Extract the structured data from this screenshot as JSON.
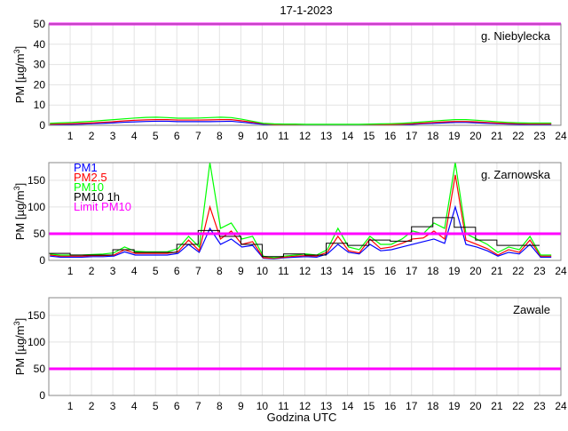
{
  "title": "17-1-2023",
  "xlabel": "Godzina UTC",
  "chart_data": [
    {
      "type": "line",
      "station": "g. Niebylecka",
      "ylabel": "PM [µg/m3]",
      "ylabel_main": "PM [µg/m",
      "ylabel_sup": "3",
      "ylabel_tail": "]",
      "xlim": [
        0,
        24
      ],
      "ylim": [
        0,
        50
      ],
      "xticks": [
        1,
        2,
        3,
        4,
        5,
        6,
        7,
        8,
        9,
        10,
        11,
        12,
        13,
        14,
        15,
        16,
        17,
        18,
        19,
        20,
        21,
        22,
        23,
        24
      ],
      "yticks": [
        0,
        10,
        20,
        30,
        40,
        50
      ],
      "limit": 50,
      "x_step_hours": 0.5,
      "series": [
        {
          "name": "PM1",
          "color": "#0000ff",
          "values": [
            0.3,
            0.4,
            0.5,
            0.6,
            0.8,
            1,
            1.2,
            1.5,
            1.7,
            1.9,
            2,
            2,
            1.8,
            1.8,
            1.8,
            1.8,
            1.9,
            2,
            1.5,
            1,
            0.5,
            0.3,
            0.2,
            0.2,
            0.2,
            0.2,
            0.2,
            0.2,
            0.2,
            0.2,
            0.2,
            0.3,
            0.3,
            0.4,
            0.5,
            0.8,
            1,
            1.2,
            1.4,
            1.4,
            1.2,
            1,
            0.8,
            0.6,
            0.5,
            0.4,
            0.4,
            0.4
          ]
        },
        {
          "name": "PM2.5",
          "color": "#ff0000",
          "values": [
            0.6,
            0.7,
            0.8,
            1,
            1.2,
            1.5,
            1.8,
            2.2,
            2.5,
            2.7,
            2.8,
            2.8,
            2.6,
            2.6,
            2.6,
            2.7,
            2.8,
            2.8,
            2.2,
            1.5,
            0.8,
            0.5,
            0.4,
            0.4,
            0.3,
            0.3,
            0.3,
            0.3,
            0.3,
            0.3,
            0.4,
            0.5,
            0.5,
            0.6,
            0.8,
            1.1,
            1.4,
            1.7,
            1.9,
            1.9,
            1.7,
            1.4,
            1.1,
            0.9,
            0.8,
            0.7,
            0.7,
            0.7
          ]
        },
        {
          "name": "PM10",
          "color": "#00ff00",
          "values": [
            1,
            1.2,
            1.4,
            1.7,
            2,
            2.4,
            2.8,
            3.2,
            3.6,
            3.9,
            4,
            3.8,
            3.5,
            3.5,
            3.6,
            3.8,
            4,
            3.8,
            3,
            2,
            1,
            0.7,
            0.6,
            0.6,
            0.5,
            0.5,
            0.5,
            0.5,
            0.5,
            0.5,
            0.6,
            0.7,
            0.8,
            1,
            1.3,
            1.7,
            2.1,
            2.5,
            2.8,
            2.8,
            2.5,
            2.1,
            1.7,
            1.4,
            1.2,
            1.1,
            1.1,
            1.1
          ]
        }
      ]
    },
    {
      "type": "line",
      "station": "g. Zarnowska",
      "ylabel_main": "PM [µg/m",
      "ylabel_sup": "3",
      "ylabel_tail": "]",
      "xlim": [
        0,
        24
      ],
      "ylim": [
        0,
        183
      ],
      "xticks": [
        1,
        2,
        3,
        4,
        5,
        6,
        7,
        8,
        9,
        10,
        11,
        12,
        13,
        14,
        15,
        16,
        17,
        18,
        19,
        20,
        21,
        22,
        23,
        24
      ],
      "yticks": [
        0,
        50,
        100,
        150
      ],
      "limit": 50,
      "legend": [
        "PM1",
        "PM2.5",
        "PM10",
        "PM10 1h",
        "Limit PM10"
      ],
      "legend_location": "top-left",
      "x_step_hours": 0.5,
      "series": [
        {
          "name": "PM1",
          "color": "#0000ff",
          "values": [
            8,
            6,
            6,
            6,
            7,
            7,
            8,
            16,
            10,
            10,
            10,
            10,
            13,
            30,
            15,
            60,
            30,
            40,
            25,
            28,
            4,
            3,
            5,
            6,
            7,
            6,
            12,
            30,
            15,
            12,
            30,
            18,
            20,
            25,
            30,
            35,
            40,
            32,
            100,
            30,
            25,
            18,
            8,
            15,
            12,
            30,
            6,
            6
          ]
        },
        {
          "name": "PM2.5",
          "color": "#ff0000",
          "values": [
            10,
            8,
            8,
            8,
            9,
            9,
            10,
            20,
            13,
            13,
            13,
            13,
            16,
            38,
            18,
            100,
            40,
            55,
            30,
            35,
            5,
            4,
            6,
            8,
            9,
            8,
            15,
            45,
            18,
            14,
            40,
            22,
            25,
            32,
            40,
            42,
            55,
            40,
            160,
            38,
            30,
            22,
            10,
            20,
            15,
            38,
            8,
            8
          ]
        },
        {
          "name": "PM10",
          "color": "#00ff00",
          "values": [
            12,
            10,
            10,
            10,
            11,
            12,
            14,
            25,
            17,
            16,
            16,
            16,
            22,
            45,
            25,
            190,
            60,
            70,
            40,
            45,
            8,
            5,
            8,
            10,
            12,
            10,
            20,
            60,
            25,
            20,
            45,
            30,
            30,
            40,
            55,
            50,
            70,
            60,
            183,
            50,
            40,
            30,
            15,
            25,
            20,
            45,
            10,
            10
          ]
        },
        {
          "name": "PM10 1h",
          "color": "#000000",
          "step": true,
          "x_step_hours": 1,
          "values": [
            13,
            10,
            10,
            20,
            15,
            15,
            30,
            56,
            45,
            30,
            7,
            12,
            10,
            32,
            28,
            38,
            36,
            63,
            80,
            62,
            38,
            28,
            28
          ]
        }
      ]
    },
    {
      "type": "line",
      "station": "Zawale",
      "ylabel_main": "PM [µg/m",
      "ylabel_sup": "3",
      "ylabel_tail": "]",
      "xlim": [
        0,
        24
      ],
      "ylim": [
        0,
        183
      ],
      "xticks": [
        1,
        2,
        3,
        4,
        5,
        6,
        7,
        8,
        9,
        10,
        11,
        12,
        13,
        14,
        15,
        16,
        17,
        18,
        19,
        20,
        21,
        22,
        23,
        24
      ],
      "yticks": [
        0,
        50,
        100,
        150
      ],
      "limit": 50,
      "series": []
    }
  ]
}
